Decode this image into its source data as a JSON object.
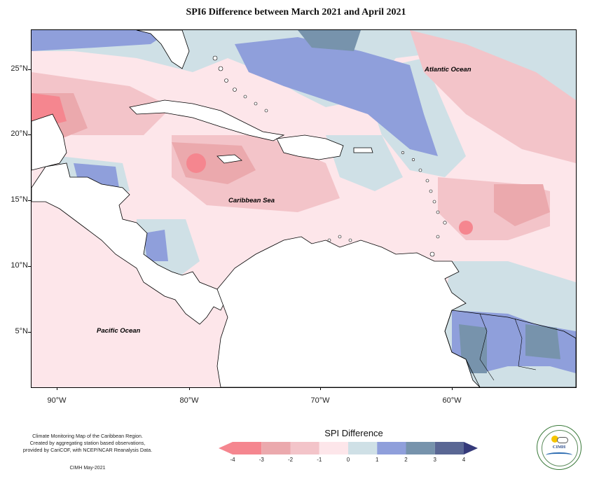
{
  "title": "SPI6 Difference between March 2021 and April 2021",
  "map": {
    "lat_labels": [
      "25°N",
      "20°N",
      "15°N",
      "10°N",
      "5°N"
    ],
    "lon_labels": [
      "90°W",
      "80°W",
      "70°W",
      "60°W"
    ],
    "region_labels": {
      "atlantic": "Atlantic Ocean",
      "caribbean": "Caribbean Sea",
      "pacific": "Pacific Ocean"
    },
    "colors": {
      "land": "#ffffff",
      "coast": "#000000",
      "m4": "#f5868f",
      "m3": "#eba9ad",
      "m2": "#f3c4c9",
      "m1": "#fde6ea",
      "p0": "#cfe0e6",
      "p1": "#8f9fdb",
      "p2": "#7793ac",
      "p3": "#5a6794"
    }
  },
  "legend": {
    "title": "SPI Difference",
    "ticks": [
      "-4",
      "-3",
      "-2",
      "-1",
      "0",
      "1",
      "2",
      "3",
      "4"
    ],
    "colors": [
      "#f5868f",
      "#eba9ad",
      "#f3c4c9",
      "#fde6ea",
      "#cfe0e6",
      "#8f9fdb",
      "#7793ac",
      "#5a6794",
      "#353a7a"
    ]
  },
  "credit": {
    "lines": [
      "Climate Monitoring Map of the Caribbean Region.",
      "Created by aggregating station based observations,",
      "provided by CariCOF, with NCEP/NCAR Reanalysis Data."
    ],
    "date": "CIMH May-2021"
  },
  "logo": {
    "text": "CIMH"
  }
}
